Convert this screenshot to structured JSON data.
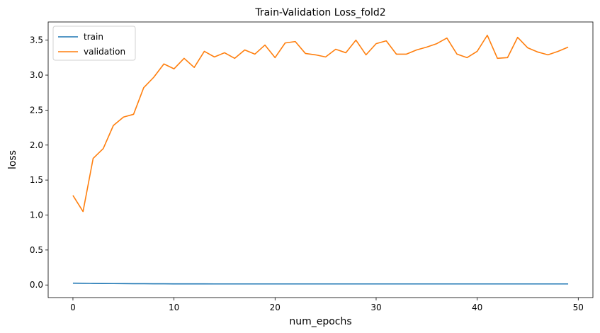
{
  "chart_data": {
    "type": "line",
    "title": "Train-Validation Loss_fold2",
    "xlabel": "num_epochs",
    "ylabel": "loss",
    "xlim": [
      -2.45,
      51.45
    ],
    "ylim": [
      -0.18,
      3.76
    ],
    "xticks": [
      0,
      10,
      20,
      30,
      40,
      50
    ],
    "yticks": [
      0.0,
      0.5,
      1.0,
      1.5,
      2.0,
      2.5,
      3.0,
      3.5
    ],
    "xtick_labels": [
      "0",
      "10",
      "20",
      "30",
      "40",
      "50"
    ],
    "ytick_labels": [
      "0.0",
      "0.5",
      "1.0",
      "1.5",
      "2.0",
      "2.5",
      "3.0",
      "3.5"
    ],
    "grid": false,
    "legend_position": "upper-left",
    "x": [
      0,
      1,
      2,
      3,
      4,
      5,
      6,
      7,
      8,
      9,
      10,
      11,
      12,
      13,
      14,
      15,
      16,
      17,
      18,
      19,
      20,
      21,
      22,
      23,
      24,
      25,
      26,
      27,
      28,
      29,
      30,
      31,
      32,
      33,
      34,
      35,
      36,
      37,
      38,
      39,
      40,
      41,
      42,
      43,
      44,
      45,
      46,
      47,
      48,
      49
    ],
    "series": [
      {
        "name": "train",
        "color": "#1f77b4",
        "values": [
          0.026,
          0.024,
          0.022,
          0.021,
          0.02,
          0.019,
          0.018,
          0.018,
          0.017,
          0.017,
          0.016,
          0.016,
          0.016,
          0.016,
          0.015,
          0.015,
          0.015,
          0.015,
          0.015,
          0.015,
          0.015,
          0.015,
          0.015,
          0.015,
          0.015,
          0.015,
          0.015,
          0.015,
          0.015,
          0.015,
          0.015,
          0.015,
          0.015,
          0.015,
          0.015,
          0.015,
          0.015,
          0.015,
          0.015,
          0.015,
          0.015,
          0.015,
          0.015,
          0.015,
          0.015,
          0.015,
          0.015,
          0.015,
          0.015,
          0.015
        ]
      },
      {
        "name": "validation",
        "color": "#ff7f0e",
        "values": [
          1.28,
          1.05,
          1.81,
          1.95,
          2.28,
          2.4,
          2.44,
          2.82,
          2.97,
          3.16,
          3.09,
          3.24,
          3.11,
          3.34,
          3.26,
          3.32,
          3.24,
          3.36,
          3.3,
          3.43,
          3.25,
          3.46,
          3.48,
          3.31,
          3.29,
          3.26,
          3.37,
          3.32,
          3.5,
          3.29,
          3.45,
          3.49,
          3.3,
          3.3,
          3.36,
          3.4,
          3.45,
          3.53,
          3.3,
          3.25,
          3.34,
          3.57,
          3.24,
          3.25,
          3.54,
          3.39,
          3.33,
          3.29,
          3.34,
          3.4
        ]
      }
    ]
  }
}
